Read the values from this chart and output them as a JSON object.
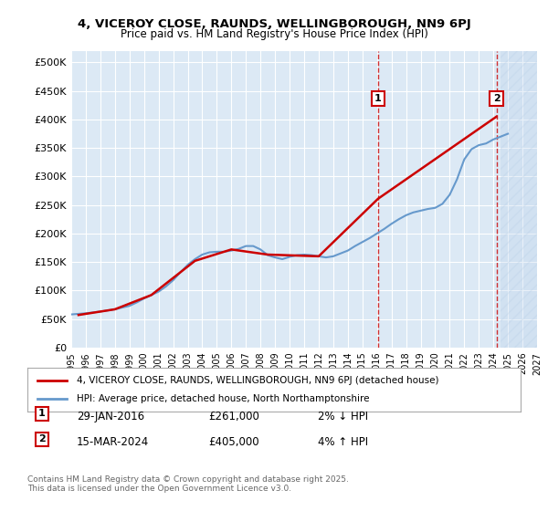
{
  "title1": "4, VICEROY CLOSE, RAUNDS, WELLINGBOROUGH, NN9 6PJ",
  "title2": "Price paid vs. HM Land Registry's House Price Index (HPI)",
  "ylabel": "",
  "background_color": "#dce9f5",
  "plot_bg": "#dce9f5",
  "hatch_color": "#b8cfe8",
  "line1_color": "#cc0000",
  "line2_color": "#6699cc",
  "ylim": [
    0,
    520000
  ],
  "yticks": [
    0,
    50000,
    100000,
    150000,
    200000,
    250000,
    300000,
    350000,
    400000,
    450000,
    500000
  ],
  "ytick_labels": [
    "£0",
    "£50K",
    "£100K",
    "£150K",
    "£200K",
    "£250K",
    "£300K",
    "£350K",
    "£400K",
    "£450K",
    "£500K"
  ],
  "marker1_x": 2016.08,
  "marker1_y": 261000,
  "marker1_label": "1",
  "marker2_x": 2024.21,
  "marker2_y": 405000,
  "marker2_label": "2",
  "legend_line1": "4, VICEROY CLOSE, RAUNDS, WELLINGBOROUGH, NN9 6PJ (detached house)",
  "legend_line2": "HPI: Average price, detached house, North Northamptonshire",
  "note1_label": "1",
  "note1_date": "29-JAN-2016",
  "note1_price": "£261,000",
  "note1_hpi": "2% ↓ HPI",
  "note2_label": "2",
  "note2_date": "15-MAR-2024",
  "note2_price": "£405,000",
  "note2_hpi": "4% ↑ HPI",
  "copyright": "Contains HM Land Registry data © Crown copyright and database right 2025.\nThis data is licensed under the Open Government Licence v3.0.",
  "xmin": 1995,
  "xmax": 2027,
  "hpi_years": [
    1995,
    1995.5,
    1996,
    1996.5,
    1997,
    1997.5,
    1998,
    1998.5,
    1999,
    1999.5,
    2000,
    2000.5,
    2001,
    2001.5,
    2002,
    2002.5,
    2003,
    2003.5,
    2004,
    2004.5,
    2005,
    2005.5,
    2006,
    2006.5,
    2007,
    2007.5,
    2008,
    2008.5,
    2009,
    2009.5,
    2010,
    2010.5,
    2011,
    2011.5,
    2012,
    2012.5,
    2013,
    2013.5,
    2014,
    2014.5,
    2015,
    2015.5,
    2016,
    2016.5,
    2017,
    2017.5,
    2018,
    2018.5,
    2019,
    2019.5,
    2020,
    2020.5,
    2021,
    2021.5,
    2022,
    2022.5,
    2023,
    2023.5,
    2024,
    2024.5,
    2025
  ],
  "hpi_values": [
    58000,
    59000,
    60000,
    61500,
    63000,
    65000,
    67000,
    70000,
    73000,
    79000,
    86000,
    92000,
    98000,
    107000,
    118000,
    132000,
    145000,
    155000,
    163000,
    167000,
    168000,
    168000,
    170000,
    173000,
    178000,
    178000,
    172000,
    162000,
    158000,
    155000,
    159000,
    162000,
    163000,
    162000,
    160000,
    158000,
    160000,
    165000,
    170000,
    178000,
    185000,
    192000,
    200000,
    208000,
    217000,
    225000,
    232000,
    237000,
    240000,
    243000,
    245000,
    252000,
    268000,
    295000,
    330000,
    348000,
    355000,
    358000,
    365000,
    370000,
    375000
  ],
  "price_years": [
    1995.5,
    1998.0,
    2000.5,
    2003.5,
    2006.0,
    2008.5,
    2012.0,
    2016.08,
    2024.21
  ],
  "price_values": [
    57000,
    67000,
    92000,
    152000,
    172000,
    163000,
    160000,
    261000,
    405000
  ]
}
